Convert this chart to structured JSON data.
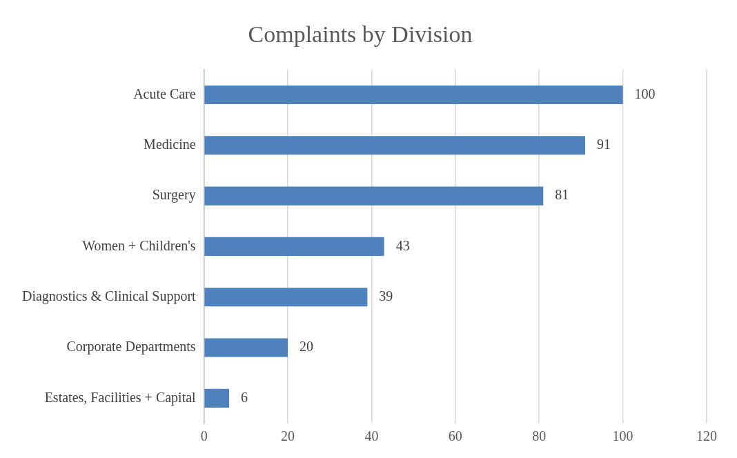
{
  "chart_data": {
    "type": "bar",
    "orientation": "horizontal",
    "title": "Complaints by Division",
    "categories": [
      "Acute Care",
      "Medicine",
      "Surgery",
      "Women + Children's",
      "Diagnostics & Clinical Support",
      "Corporate Departments",
      "Estates, Facilities + Capital"
    ],
    "values": [
      100,
      91,
      81,
      43,
      39,
      20,
      6
    ],
    "color": "#4f81bd",
    "xlim": [
      0,
      120
    ],
    "xticks": [
      0,
      20,
      40,
      60,
      80,
      100,
      120
    ],
    "grid": "x",
    "data_labels": true,
    "legend": false
  }
}
